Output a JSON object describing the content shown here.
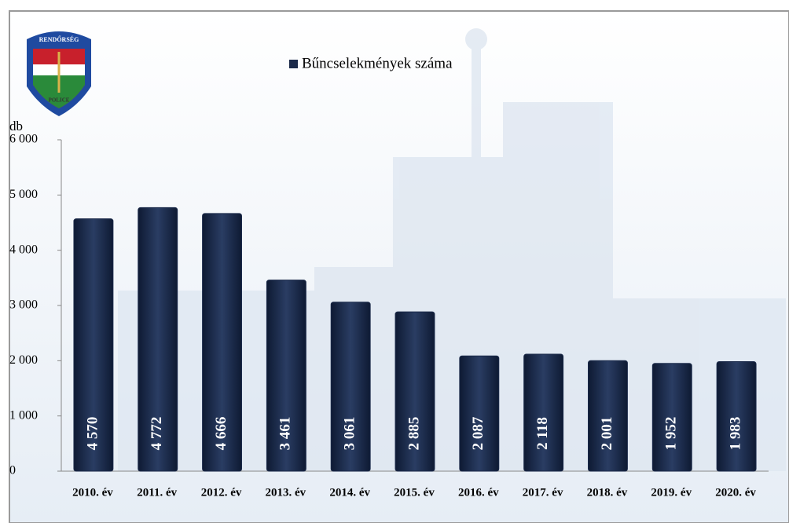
{
  "chart_data": {
    "type": "bar",
    "y_axis_label": "db",
    "categories": [
      "2010. év",
      "2011. év",
      "2012. év",
      "2013. év",
      "2014. év",
      "2015. év",
      "2016. év",
      "2017. év",
      "2018. év",
      "2019. év",
      "2020. év"
    ],
    "series": [
      {
        "name": "Bűncselekmények száma",
        "color": "#1b2a4a",
        "values": [
          4570,
          4772,
          4666,
          3461,
          3061,
          2885,
          2087,
          2118,
          2001,
          1952,
          1983
        ],
        "value_labels": [
          "4 570",
          "4 772",
          "4 666",
          "3 461",
          "3 061",
          "2 885",
          "2 087",
          "2 118",
          "2 001",
          "1 952",
          "1 983"
        ]
      }
    ],
    "ylim": [
      0,
      6000
    ],
    "yticks": [
      0,
      {
        "value": 1000,
        "label": "1 000"
      },
      {
        "value": 2000,
        "label": "2 000"
      },
      {
        "value": 3000,
        "label": "3 000"
      },
      {
        "value": 4000,
        "label": "4 000"
      },
      {
        "value": 5000,
        "label": "5 000"
      },
      {
        "value": 6000,
        "label": "6 000"
      }
    ],
    "legend": "top"
  },
  "logo": {
    "top": "RENDŐRSÉG",
    "bottom": "POLICE"
  }
}
